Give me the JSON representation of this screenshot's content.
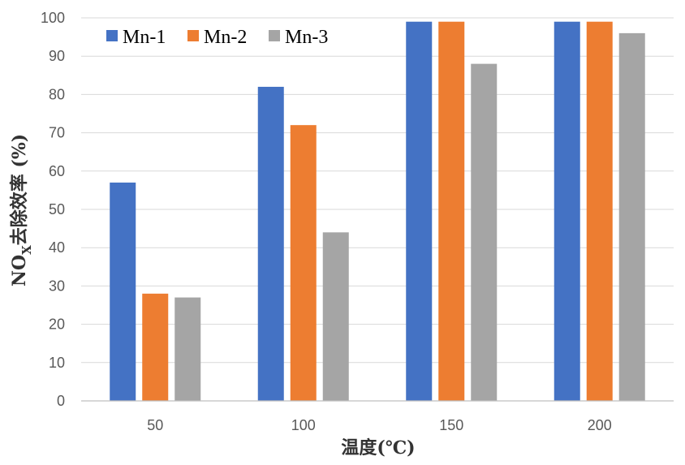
{
  "chart_data": {
    "type": "bar",
    "categories": [
      "50",
      "100",
      "150",
      "200"
    ],
    "series": [
      {
        "name": "Mn-1",
        "color": "#4472C4",
        "values": [
          57,
          82,
          99,
          99
        ]
      },
      {
        "name": "Mn-2",
        "color": "#ED7D31",
        "values": [
          28,
          72,
          99,
          99
        ]
      },
      {
        "name": "Mn-3",
        "color": "#A5A5A5",
        "values": [
          27,
          44,
          88,
          96
        ]
      }
    ],
    "xlabel": "温度(℃)",
    "ylabel_main": "NO",
    "ylabel_sub": "X",
    "ylabel_rest": "去除效率 (%)",
    "ylim": [
      0,
      100
    ],
    "yticks": [
      "0",
      "10",
      "20",
      "30",
      "40",
      "50",
      "60",
      "70",
      "80",
      "90",
      "100"
    ],
    "grid": true,
    "legend_position": "top-left"
  }
}
